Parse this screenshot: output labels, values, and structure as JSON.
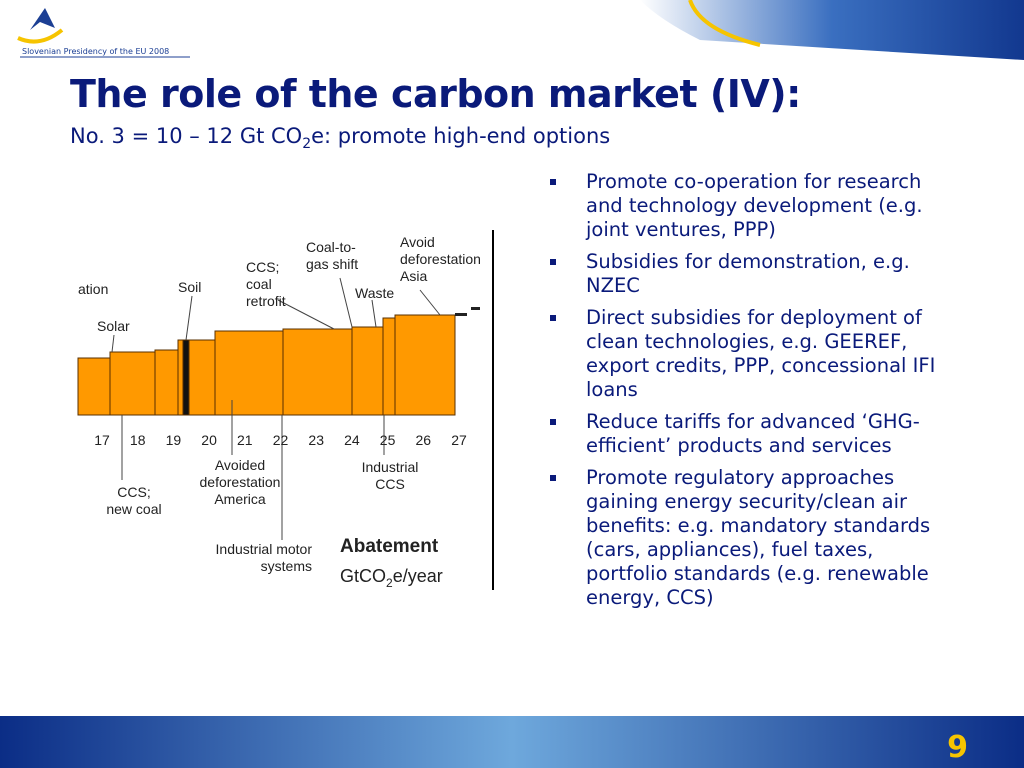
{
  "header": {
    "presidency": "Slovenian Presidency of the EU 2008"
  },
  "title": "The role of the carbon market (IV):",
  "subtitle": {
    "before": "No. 3 = 10 – 12 Gt CO",
    "sub": "2",
    "after": "e: promote high-end options"
  },
  "figure": {
    "top_labels": [
      [
        "ation"
      ],
      [
        "Solar"
      ],
      [
        "Soil"
      ],
      [
        "CCS;",
        "coal",
        "retrofit"
      ],
      [
        "Coal-to-",
        "gas shift"
      ],
      [
        "Waste"
      ],
      [
        "Avoid",
        "deforestation",
        "Asia"
      ]
    ],
    "xticks": [
      17,
      18,
      19,
      20,
      21,
      22,
      23,
      24,
      25,
      26,
      27
    ],
    "bottom_labels": [
      [
        "CCS;",
        "new coal"
      ],
      [
        "Avoided",
        "deforestation",
        "America"
      ],
      [
        "Industrial",
        "CCS"
      ],
      [
        "Industrial motor",
        "systems"
      ]
    ],
    "axis_title": "Abatement",
    "axis_unit": {
      "before": "GtCO",
      "sub": "2",
      "after": "e/year"
    }
  },
  "bullets": [
    "Promote co-operation for research and technology development (e.g. joint ventures, PPP)",
    "Subsidies for demonstration, e.g. NZEC",
    "Direct subsidies for deployment of clean technologies, e.g. GEEREF, export credits, PPP, concessional IFI loans",
    "Reduce tariffs for advanced ‘GHG-efficient’ products and services",
    "Promote regulatory approaches gaining energy security/clean air benefits: e.g. mandatory standards (cars, appliances), fuel taxes, portfolio standards (e.g. renewable energy, CCS)"
  ],
  "page_number": "9"
}
